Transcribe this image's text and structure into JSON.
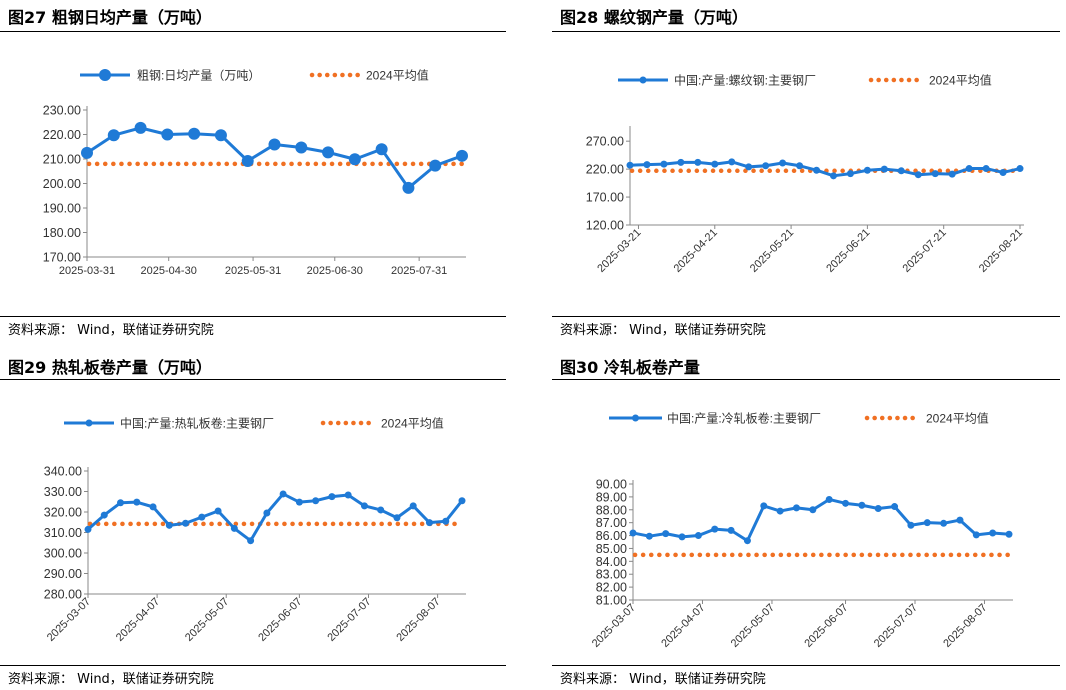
{
  "source_text": "资料来源：  Wind，联储证券研究院",
  "colors": {
    "series": "#1f7ad6",
    "average": "#f07023",
    "axis": "#888888"
  },
  "charts": [
    {
      "title": "图27 粗钢日均产量（万吨）",
      "chart_data": {
        "type": "line",
        "title": "图27 粗钢日均产量（万吨）",
        "x_tick_labels": [
          "2025-03-31",
          "2025-04-30",
          "2025-05-31",
          "2025-06-30",
          "2025-07-31"
        ],
        "y_tick_labels": [
          "170.00",
          "180.00",
          "190.00",
          "200.00",
          "210.00",
          "220.00",
          "230.00"
        ],
        "ylim": [
          170,
          230
        ],
        "series": [
          {
            "name": "粗钢:日均产量（万吨）",
            "marker_size": "large",
            "values": [
              212.5,
              219.7,
              222.7,
              220.0,
              220.3,
              219.7,
              209.2,
              215.9,
              214.7,
              212.7,
              209.9,
              214.0,
              198.2,
              207.3,
              211.3
            ]
          },
          {
            "name": "2024平均值",
            "style": "dotted",
            "value": 208.0
          }
        ]
      }
    },
    {
      "title": "图28 螺纹钢产量（万吨）",
      "chart_data": {
        "type": "line",
        "title": "图28 螺纹钢产量（万吨）",
        "x_tick_labels": [
          "2025-03-21",
          "2025-04-21",
          "2025-05-21",
          "2025-06-21",
          "2025-07-21",
          "2025-08-21"
        ],
        "y_tick_labels": [
          "120.00",
          "170.00",
          "220.00",
          "270.00"
        ],
        "ylim": [
          120,
          290
        ],
        "series": [
          {
            "name": "中国:产量:螺纹钢:主要钢厂",
            "marker_size": "small",
            "values": [
              227,
              228,
              229,
              232,
              232,
              229,
              233,
              224,
              226,
              231,
              226,
              218,
              208,
              212,
              218,
              220,
              217,
              210,
              212,
              211,
              221,
              221,
              214,
              221
            ]
          },
          {
            "name": "2024平均值",
            "style": "dotted",
            "value": 217
          }
        ]
      }
    },
    {
      "title": "图29 热轧板卷产量（万吨）",
      "chart_data": {
        "type": "line",
        "title": "图29 热轧板卷产量（万吨）",
        "x_tick_labels": [
          "2025-03-07",
          "2025-04-07",
          "2025-05-07",
          "2025-06-07",
          "2025-07-07",
          "2025-08-07"
        ],
        "y_tick_labels": [
          "280.00",
          "290.00",
          "300.00",
          "310.00",
          "320.00",
          "330.00",
          "340.00"
        ],
        "ylim": [
          280,
          340
        ],
        "series": [
          {
            "name": "中国:产量:热轧板卷:主要钢厂",
            "marker_size": "small",
            "values": [
              311.5,
              318.5,
              324.5,
              324.8,
              322.5,
              313.5,
              314.5,
              317.5,
              320.5,
              312.0,
              306.0,
              319.5,
              328.8,
              324.8,
              325.5,
              327.5,
              328.3,
              323.0,
              321.0,
              317.2,
              323.0,
              314.8,
              315.5,
              325.5
            ]
          },
          {
            "name": "2024平均值",
            "style": "dotted",
            "value": 314.2
          }
        ]
      }
    },
    {
      "title": "图30 冷轧板卷产量",
      "chart_data": {
        "type": "line",
        "title": "图30 冷轧板卷产量",
        "x_tick_labels": [
          "2025-03-07",
          "2025-04-07",
          "2025-05-07",
          "2025-06-07",
          "2025-07-07",
          "2025-08-07"
        ],
        "y_tick_labels": [
          "81.00",
          "82.00",
          "83.00",
          "84.00",
          "85.00",
          "86.00",
          "87.00",
          "88.00",
          "89.00",
          "90.00"
        ],
        "ylim": [
          81,
          90
        ],
        "series": [
          {
            "name": "中国:产量:冷轧板卷:主要钢厂",
            "marker_size": "small",
            "values": [
              86.2,
              85.95,
              86.15,
              85.9,
              86.0,
              86.5,
              86.4,
              85.6,
              88.3,
              87.9,
              88.15,
              88.0,
              88.8,
              88.5,
              88.35,
              88.1,
              88.25,
              86.8,
              87.0,
              86.95,
              87.2,
              86.05,
              86.2,
              86.1
            ]
          },
          {
            "name": "2024平均值",
            "style": "dotted",
            "value": 84.5
          }
        ]
      }
    }
  ]
}
